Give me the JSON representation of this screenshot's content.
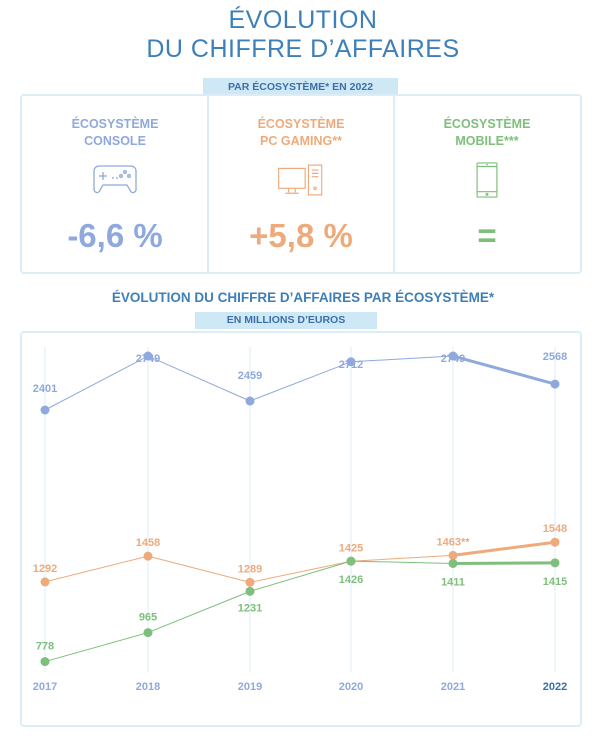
{
  "header": {
    "title_line1": "ÉVOLUTION",
    "title_line2": "DU CHIFFRE D’AFFAIRES",
    "tag": "PAR ÉCOSYSTÈME* EN 2022"
  },
  "ecosystems": [
    {
      "line1": "ÉCOSYSTÈME",
      "line2": "CONSOLE",
      "icon": "gamepad-icon",
      "value": "-6,6 %",
      "color": "#8fa9dc"
    },
    {
      "line1": "ÉCOSYSTÈME",
      "line2": "PC GAMING**",
      "icon": "desktop-pc-icon",
      "value": "+5,8 %",
      "color": "#eeaa7b"
    },
    {
      "line1": "ÉCOSYSTÈME",
      "line2": "MOBILE***",
      "icon": "smartphone-icon",
      "value": "=",
      "color": "#7dbf7b"
    }
  ],
  "chart_data": {
    "type": "line",
    "title": "ÉVOLUTION DU CHIFFRE D’AFFAIRES PAR ÉCOSYSTÈME*",
    "subtitle": "EN MILLIONS D’EUROS",
    "categories": [
      "2017",
      "2018",
      "2019",
      "2020",
      "2021",
      "2022"
    ],
    "series": [
      {
        "color": "#8fa9dc",
        "values": [
          2401,
          2749,
          2459,
          2712,
          2749,
          2568
        ],
        "labels": [
          "2401",
          "2749",
          "2459",
          "2712",
          "2749",
          "2568"
        ]
      },
      {
        "color": "#eeaa7b",
        "values": [
          1292,
          1458,
          1289,
          1425,
          1463,
          1548
        ],
        "labels": [
          "1292",
          "1458",
          "1289",
          "1425",
          "1463**",
          "1548"
        ]
      },
      {
        "color": "#7dbf7b",
        "values": [
          778,
          965,
          1231,
          1426,
          1411,
          1415
        ],
        "labels": [
          "778",
          "965",
          "1231",
          "1426",
          "1411",
          "1415"
        ]
      }
    ],
    "grid": "vertical"
  }
}
